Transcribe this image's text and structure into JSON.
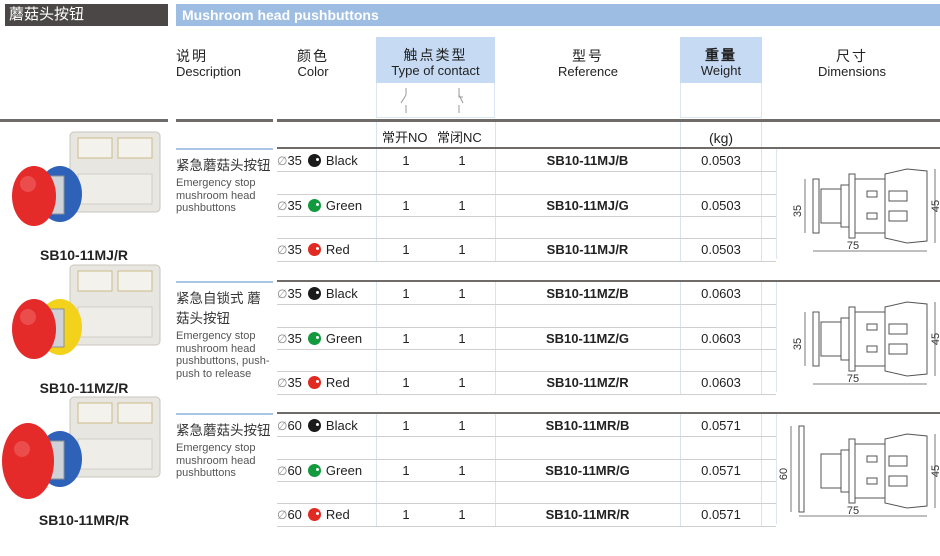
{
  "header": {
    "title_cn": "蘑菇头按钮",
    "title_en": "Mushroom head pushbuttons"
  },
  "columns": {
    "description": {
      "cn": "说明",
      "en": "Description"
    },
    "color": {
      "cn": "颜色",
      "en": "Color"
    },
    "contact": {
      "cn": "触点类型",
      "en": "Type of contact",
      "no": "常开NO",
      "nc": "常闭NC"
    },
    "reference": {
      "cn": "型号",
      "en": "Reference"
    },
    "weight": {
      "cn": "重量",
      "en": "Weight",
      "unit": "(kg)"
    },
    "dimensions": {
      "cn": "尺寸",
      "en": "Dimensions"
    }
  },
  "colors": {
    "Black": "#1a1a1a",
    "Green": "#139a3e",
    "Red": "#e02a22",
    "accent": "#9dbde3"
  },
  "diameter_symbol": "∅",
  "groups": [
    {
      "product": "SB10-11MJ/R",
      "ring": "#2d62b8",
      "desc_cn": "紧急蘑菇头按钮",
      "desc_en": "Emergency stop mushroom head pushbuttons",
      "dims": {
        "head": "35",
        "height": "45",
        "length": "75"
      },
      "rows": [
        {
          "dia": "35",
          "color": "Black",
          "no": "1",
          "nc": "1",
          "ref": "SB10-11MJ/B",
          "weight": "0.0503"
        },
        {
          "dia": "35",
          "color": "Green",
          "no": "1",
          "nc": "1",
          "ref": "SB10-11MJ/G",
          "weight": "0.0503"
        },
        {
          "dia": "35",
          "color": "Red",
          "no": "1",
          "nc": "1",
          "ref": "SB10-11MJ/R",
          "weight": "0.0503"
        }
      ]
    },
    {
      "product": "SB10-11MZ/R",
      "ring": "#f2d21a",
      "desc_cn": "紧急自锁式 蘑菇头按钮",
      "desc_en": "Emergency stop mushroom head pushbuttons, push-push to release",
      "dims": {
        "head": "35",
        "height": "45",
        "length": "75"
      },
      "rows": [
        {
          "dia": "35",
          "color": "Black",
          "no": "1",
          "nc": "1",
          "ref": "SB10-11MZ/B",
          "weight": "0.0603"
        },
        {
          "dia": "35",
          "color": "Green",
          "no": "1",
          "nc": "1",
          "ref": "SB10-11MZ/G",
          "weight": "0.0603"
        },
        {
          "dia": "35",
          "color": "Red",
          "no": "1",
          "nc": "1",
          "ref": "SB10-11MZ/R",
          "weight": "0.0603"
        }
      ]
    },
    {
      "product": "SB10-11MR/R",
      "ring": "#2d62b8",
      "desc_cn": "紧急蘑菇头按钮",
      "desc_en": "Emergency stop mushroom head pushbuttons",
      "dims": {
        "head": "60",
        "height": "45",
        "length": "75"
      },
      "rows": [
        {
          "dia": "60",
          "color": "Black",
          "no": "1",
          "nc": "1",
          "ref": "SB10-11MR/B",
          "weight": "0.0571"
        },
        {
          "dia": "60",
          "color": "Green",
          "no": "1",
          "nc": "1",
          "ref": "SB10-11MR/G",
          "weight": "0.0571"
        },
        {
          "dia": "60",
          "color": "Red",
          "no": "1",
          "nc": "1",
          "ref": "SB10-11MR/R",
          "weight": "0.0571"
        }
      ]
    }
  ]
}
